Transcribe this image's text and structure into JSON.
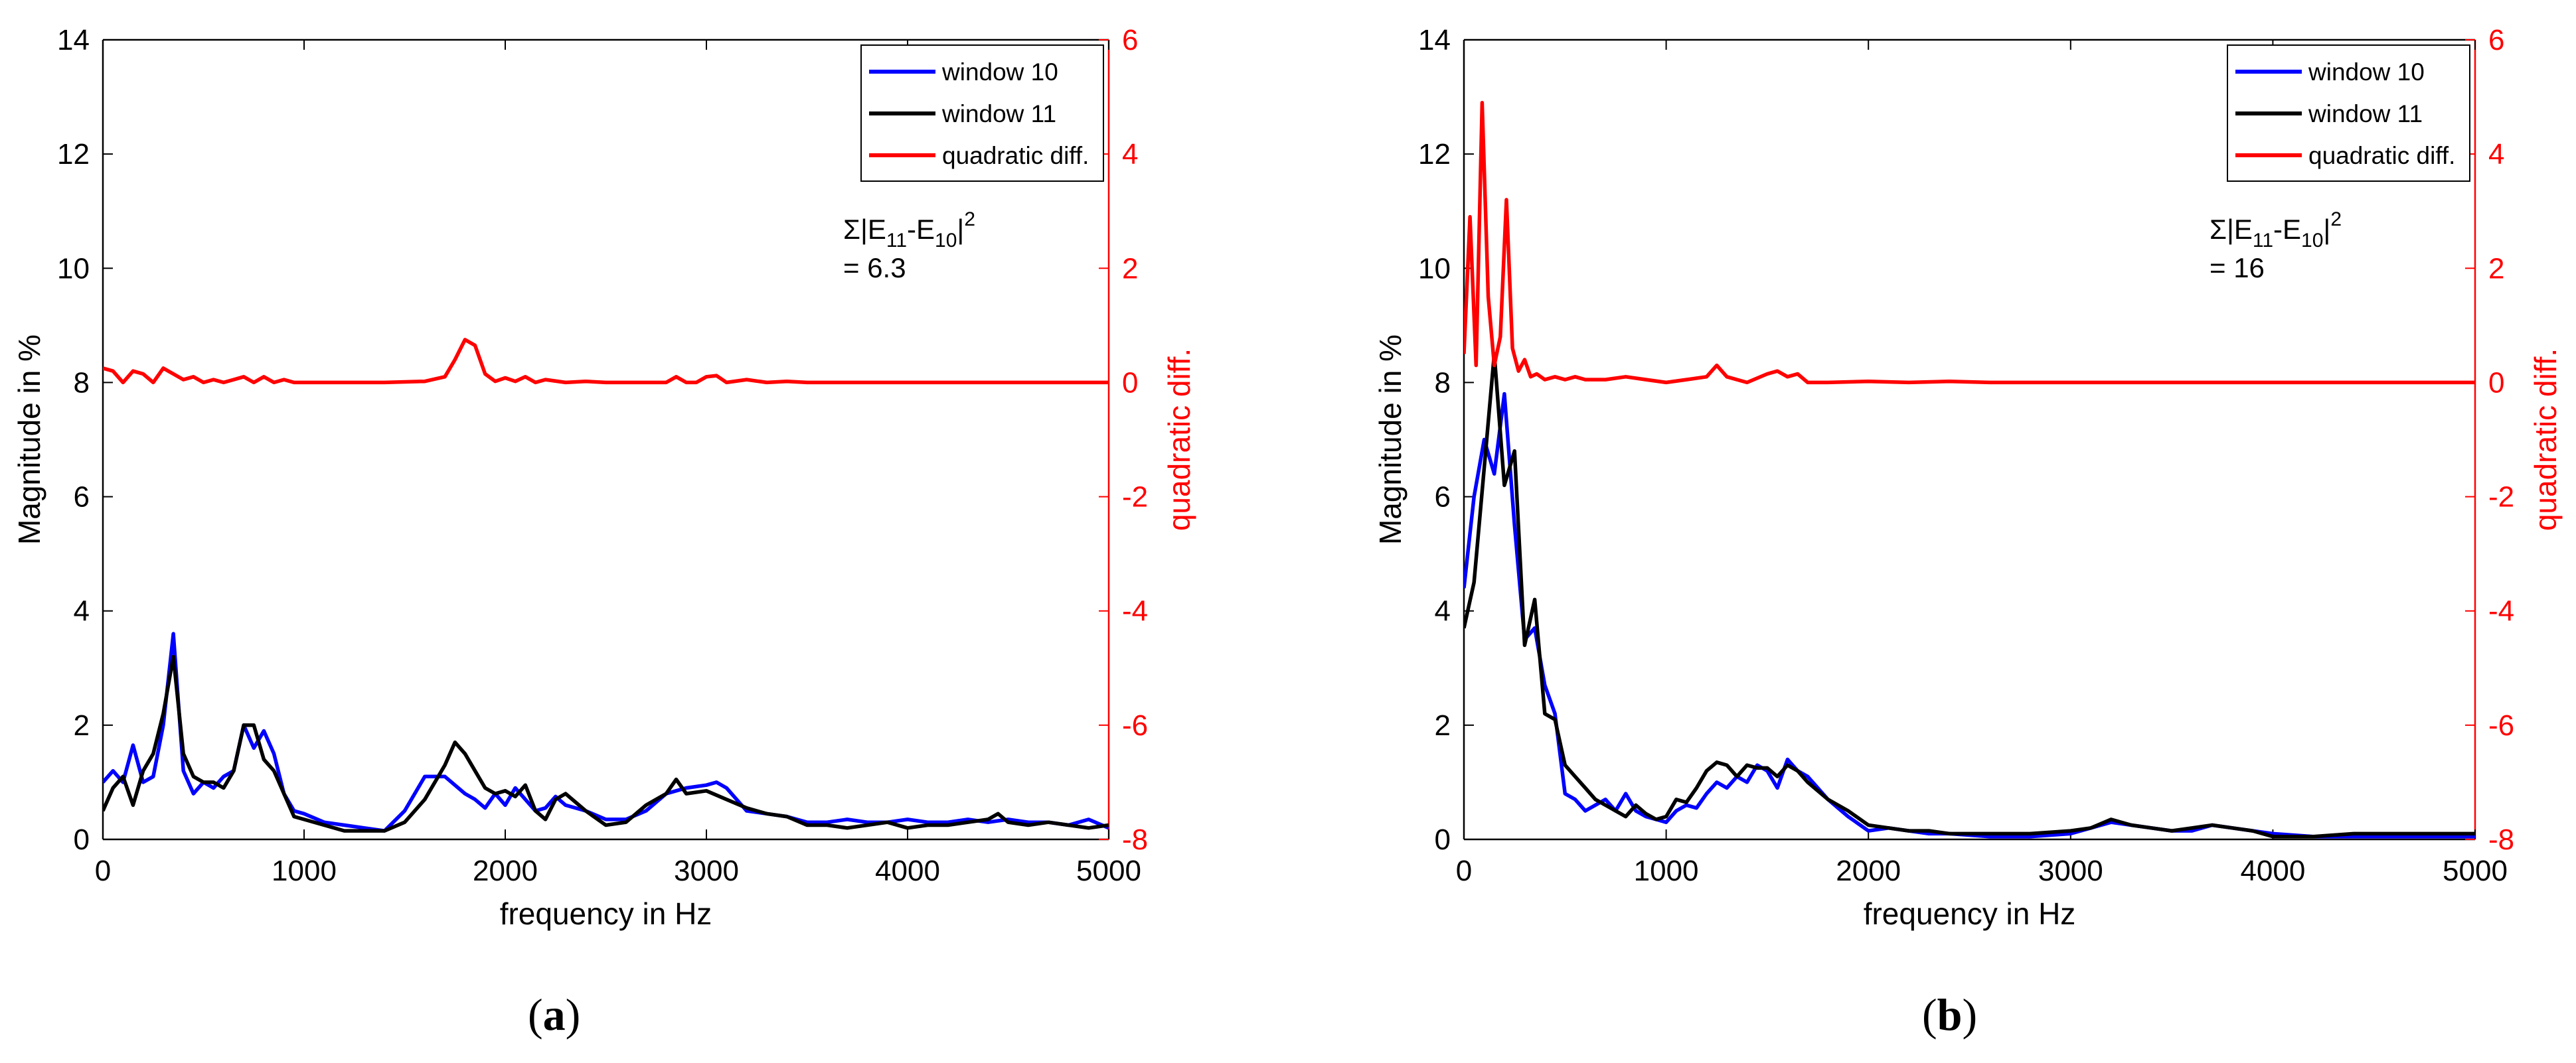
{
  "figure": {
    "panels": [
      {
        "caption_open": "(",
        "caption_letter": "a",
        "caption_close": ")"
      },
      {
        "caption_open": "(",
        "caption_letter": "b",
        "caption_close": ")"
      }
    ]
  },
  "colors": {
    "window10": "#0000FF",
    "window11": "#000000",
    "quadratic": "#FF0000",
    "axis": "#000000",
    "right_axis": "#FF0000",
    "background": "#FFFFFF"
  },
  "chart_data": [
    {
      "type": "line",
      "panel": "a",
      "xlabel": "frequency in Hz",
      "ylabel": "Magnitude in %",
      "y2label": "quadratic diff.",
      "xlim": [
        0,
        5000
      ],
      "ylim": [
        0,
        14
      ],
      "y2lim": [
        -8,
        6
      ],
      "xticks": [
        "0",
        "1000",
        "2000",
        "3000",
        "4000",
        "5000"
      ],
      "yticks": [
        "0",
        "2",
        "4",
        "6",
        "8",
        "10",
        "12",
        "14"
      ],
      "y2ticks": [
        "-8",
        "-6",
        "-4",
        "-2",
        "0",
        "2",
        "4",
        "6"
      ],
      "legend_position": "top-right",
      "annotation": {
        "sigma_prefix": "Σ|E",
        "sub1": "11",
        "mid": "-E",
        "sub2": "10",
        "suffix": "|",
        "sup": "2",
        "value_text": "= 6.3"
      },
      "series": [
        {
          "name": "window 10",
          "axis": "left",
          "x": [
            0,
            50,
            100,
            150,
            200,
            250,
            300,
            350,
            400,
            450,
            500,
            550,
            600,
            650,
            700,
            750,
            800,
            850,
            900,
            950,
            1000,
            1100,
            1200,
            1300,
            1400,
            1500,
            1600,
            1700,
            1800,
            1850,
            1900,
            1950,
            2000,
            2050,
            2100,
            2150,
            2200,
            2250,
            2300,
            2400,
            2500,
            2600,
            2700,
            2800,
            2900,
            3000,
            3050,
            3100,
            3150,
            3200,
            3300,
            3400,
            3500,
            3600,
            3700,
            3800,
            3900,
            4000,
            4100,
            4200,
            4300,
            4400,
            4500,
            4600,
            4700,
            4800,
            4900,
            5000
          ],
          "values": [
            1.0,
            1.2,
            1.0,
            1.65,
            1.0,
            1.1,
            2.0,
            3.6,
            1.2,
            0.8,
            1.0,
            0.9,
            1.1,
            1.2,
            2.0,
            1.6,
            1.9,
            1.5,
            0.8,
            0.5,
            0.45,
            0.3,
            0.25,
            0.2,
            0.15,
            0.5,
            1.1,
            1.1,
            0.8,
            0.7,
            0.55,
            0.8,
            0.6,
            0.9,
            0.7,
            0.5,
            0.55,
            0.75,
            0.6,
            0.5,
            0.35,
            0.35,
            0.5,
            0.8,
            0.9,
            0.95,
            1.0,
            0.9,
            0.7,
            0.5,
            0.45,
            0.4,
            0.3,
            0.3,
            0.35,
            0.3,
            0.3,
            0.35,
            0.3,
            0.3,
            0.35,
            0.3,
            0.35,
            0.3,
            0.3,
            0.25,
            0.35,
            0.2
          ]
        },
        {
          "name": "window 11",
          "axis": "left",
          "x": [
            0,
            50,
            100,
            150,
            200,
            250,
            300,
            350,
            400,
            450,
            500,
            550,
            600,
            650,
            700,
            750,
            800,
            850,
            900,
            950,
            1000,
            1100,
            1200,
            1300,
            1400,
            1500,
            1600,
            1700,
            1750,
            1800,
            1850,
            1900,
            1950,
            2000,
            2050,
            2100,
            2150,
            2200,
            2250,
            2300,
            2400,
            2500,
            2600,
            2700,
            2800,
            2850,
            2900,
            3000,
            3100,
            3200,
            3300,
            3400,
            3500,
            3600,
            3700,
            3800,
            3900,
            4000,
            4100,
            4200,
            4300,
            4400,
            4450,
            4500,
            4600,
            4700,
            4800,
            4900,
            5000
          ],
          "values": [
            0.5,
            0.9,
            1.1,
            0.6,
            1.2,
            1.5,
            2.2,
            3.2,
            1.5,
            1.1,
            1.0,
            1.0,
            0.9,
            1.2,
            2.0,
            2.0,
            1.4,
            1.2,
            0.8,
            0.4,
            0.35,
            0.25,
            0.15,
            0.15,
            0.15,
            0.3,
            0.7,
            1.3,
            1.7,
            1.5,
            1.2,
            0.9,
            0.8,
            0.85,
            0.75,
            0.95,
            0.5,
            0.35,
            0.7,
            0.8,
            0.5,
            0.25,
            0.3,
            0.6,
            0.8,
            1.05,
            0.8,
            0.85,
            0.7,
            0.55,
            0.45,
            0.4,
            0.25,
            0.25,
            0.2,
            0.25,
            0.3,
            0.2,
            0.25,
            0.25,
            0.3,
            0.35,
            0.45,
            0.3,
            0.25,
            0.3,
            0.25,
            0.2,
            0.25
          ]
        },
        {
          "name": "quadratic diff.",
          "axis": "right",
          "x": [
            0,
            50,
            100,
            150,
            200,
            250,
            300,
            350,
            400,
            450,
            500,
            550,
            600,
            650,
            700,
            750,
            800,
            850,
            900,
            950,
            1000,
            1200,
            1400,
            1600,
            1700,
            1750,
            1800,
            1850,
            1900,
            1950,
            2000,
            2050,
            2100,
            2150,
            2200,
            2300,
            2400,
            2500,
            2600,
            2700,
            2800,
            2850,
            2900,
            2950,
            3000,
            3050,
            3100,
            3200,
            3300,
            3400,
            3500,
            4000,
            4500,
            5000
          ],
          "values": [
            0.25,
            0.2,
            0.0,
            0.2,
            0.15,
            0.0,
            0.25,
            0.15,
            0.05,
            0.1,
            0.0,
            0.05,
            0.0,
            0.05,
            0.1,
            0.0,
            0.1,
            0.0,
            0.05,
            0.0,
            0.0,
            0.0,
            0.0,
            0.02,
            0.1,
            0.4,
            0.75,
            0.65,
            0.15,
            0.02,
            0.08,
            0.02,
            0.1,
            0.0,
            0.05,
            0.0,
            0.02,
            0.0,
            0.0,
            0.0,
            0.0,
            0.1,
            0.0,
            0.0,
            0.1,
            0.12,
            0.0,
            0.05,
            0.0,
            0.02,
            0.0,
            0.0,
            0.0,
            0.0
          ]
        }
      ]
    },
    {
      "type": "line",
      "panel": "b",
      "xlabel": "frequency in Hz",
      "ylabel": "Magnitude in %",
      "y2label": "quadratic diff.",
      "xlim": [
        0,
        5000
      ],
      "ylim": [
        0,
        14
      ],
      "y2lim": [
        -8,
        6
      ],
      "xticks": [
        "0",
        "1000",
        "2000",
        "3000",
        "4000",
        "5000"
      ],
      "yticks": [
        "0",
        "2",
        "4",
        "6",
        "8",
        "10",
        "12",
        "14"
      ],
      "y2ticks": [
        "-8",
        "-6",
        "-4",
        "-2",
        "0",
        "2",
        "4",
        "6"
      ],
      "legend_position": "top-right",
      "annotation": {
        "sigma_prefix": "Σ|E",
        "sub1": "11",
        "mid": "-E",
        "sub2": "10",
        "suffix": "|",
        "sup": "2",
        "value_text": "= 16"
      },
      "series": [
        {
          "name": "window 10",
          "axis": "left",
          "x": [
            0,
            50,
            100,
            150,
            200,
            250,
            300,
            350,
            400,
            450,
            500,
            550,
            600,
            650,
            700,
            750,
            800,
            850,
            900,
            950,
            1000,
            1050,
            1100,
            1150,
            1200,
            1250,
            1300,
            1350,
            1400,
            1450,
            1500,
            1550,
            1600,
            1650,
            1700,
            1800,
            1900,
            2000,
            2100,
            2200,
            2300,
            2400,
            2600,
            2800,
            3000,
            3100,
            3200,
            3300,
            3400,
            3500,
            3600,
            3700,
            3800,
            3900,
            4000,
            4200,
            4400,
            4600,
            4800,
            5000
          ],
          "values": [
            4.4,
            6.0,
            7.0,
            6.4,
            7.8,
            5.5,
            3.5,
            3.7,
            2.7,
            2.2,
            0.8,
            0.7,
            0.5,
            0.6,
            0.7,
            0.5,
            0.8,
            0.5,
            0.4,
            0.35,
            0.3,
            0.5,
            0.6,
            0.55,
            0.8,
            1.0,
            0.9,
            1.1,
            1.0,
            1.3,
            1.2,
            0.9,
            1.4,
            1.2,
            1.1,
            0.7,
            0.4,
            0.15,
            0.2,
            0.15,
            0.1,
            0.1,
            0.05,
            0.05,
            0.1,
            0.2,
            0.3,
            0.25,
            0.2,
            0.15,
            0.15,
            0.25,
            0.2,
            0.15,
            0.1,
            0.05,
            0.05,
            0.05,
            0.05,
            0.05
          ]
        },
        {
          "name": "window 11",
          "axis": "left",
          "x": [
            0,
            50,
            100,
            150,
            200,
            250,
            300,
            350,
            400,
            450,
            500,
            550,
            600,
            650,
            700,
            750,
            800,
            850,
            900,
            950,
            1000,
            1050,
            1100,
            1150,
            1200,
            1250,
            1300,
            1350,
            1400,
            1450,
            1500,
            1550,
            1600,
            1650,
            1700,
            1800,
            1900,
            2000,
            2100,
            2200,
            2300,
            2400,
            2600,
            2800,
            3000,
            3100,
            3200,
            3300,
            3400,
            3500,
            3600,
            3700,
            3800,
            3900,
            4000,
            4200,
            4400,
            4600,
            4800,
            5000
          ],
          "values": [
            3.7,
            4.5,
            6.5,
            8.5,
            6.2,
            6.8,
            3.4,
            4.2,
            2.2,
            2.1,
            1.3,
            1.1,
            0.9,
            0.7,
            0.6,
            0.5,
            0.4,
            0.6,
            0.45,
            0.35,
            0.4,
            0.7,
            0.65,
            0.9,
            1.2,
            1.35,
            1.3,
            1.1,
            1.3,
            1.25,
            1.25,
            1.1,
            1.3,
            1.2,
            1.0,
            0.7,
            0.5,
            0.25,
            0.2,
            0.15,
            0.15,
            0.1,
            0.1,
            0.1,
            0.15,
            0.2,
            0.35,
            0.25,
            0.2,
            0.15,
            0.2,
            0.25,
            0.2,
            0.15,
            0.05,
            0.05,
            0.1,
            0.1,
            0.1,
            0.1
          ]
        },
        {
          "name": "quadratic diff.",
          "axis": "right",
          "x": [
            0,
            30,
            60,
            90,
            120,
            150,
            180,
            210,
            240,
            270,
            300,
            330,
            360,
            400,
            450,
            500,
            550,
            600,
            700,
            800,
            900,
            1000,
            1100,
            1200,
            1250,
            1300,
            1350,
            1400,
            1500,
            1550,
            1600,
            1650,
            1700,
            1800,
            2000,
            2200,
            2400,
            2600,
            3000,
            4000,
            5000
          ],
          "values": [
            0.5,
            2.9,
            0.3,
            4.9,
            1.5,
            0.3,
            0.8,
            3.2,
            0.6,
            0.2,
            0.4,
            0.1,
            0.15,
            0.05,
            0.1,
            0.05,
            0.1,
            0.05,
            0.05,
            0.1,
            0.05,
            0.0,
            0.05,
            0.1,
            0.3,
            0.1,
            0.05,
            0.0,
            0.15,
            0.2,
            0.1,
            0.15,
            0.0,
            0.0,
            0.02,
            0.0,
            0.02,
            0.0,
            0.0,
            0.0,
            0.0
          ]
        }
      ]
    }
  ]
}
